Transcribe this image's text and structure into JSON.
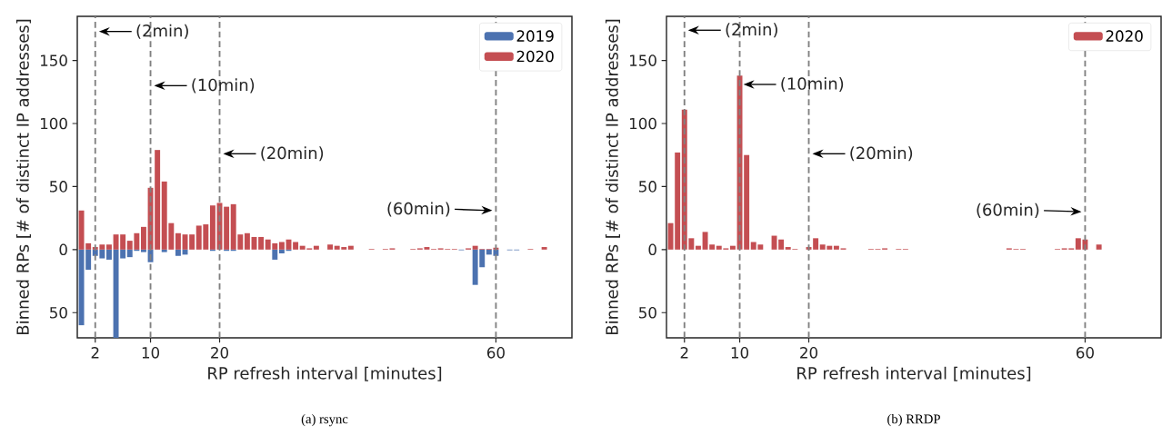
{
  "chart_data": [
    {
      "type": "bar",
      "xlabel": "RP refresh interval [minutes]",
      "ylabel": "Binned RPs [# of distinct IP addresses]",
      "x": [
        0,
        1,
        2,
        3,
        4,
        5,
        6,
        7,
        8,
        9,
        10,
        11,
        12,
        13,
        14,
        15,
        16,
        17,
        18,
        19,
        20,
        21,
        22,
        23,
        24,
        25,
        26,
        27,
        28,
        29,
        30,
        31,
        32,
        33,
        34,
        35,
        36,
        37,
        38,
        39,
        40,
        41,
        42,
        43,
        44,
        45,
        46,
        47,
        48,
        49,
        50,
        51,
        52,
        53,
        54,
        55,
        56,
        57,
        58,
        59,
        60,
        61,
        62,
        63,
        64,
        65,
        66,
        67
      ],
      "series": [
        {
          "name": "2019",
          "color": "#4c72b0",
          "values": [
            -60,
            -16,
            -5,
            -7,
            -8,
            -70,
            -7,
            -6,
            -1,
            -2,
            -10,
            null,
            -2,
            null,
            -5,
            -4,
            null,
            null,
            null,
            -1,
            null,
            -1,
            -1,
            null,
            null,
            null,
            null,
            null,
            -8,
            -3,
            -1,
            null,
            null,
            null,
            null,
            null,
            null,
            null,
            null,
            null,
            null,
            null,
            null,
            null,
            null,
            null,
            null,
            null,
            null,
            null,
            null,
            null,
            null,
            null,
            null,
            -0.5,
            null,
            -28,
            -14,
            -4,
            -5,
            null,
            -0.5,
            -0.5,
            null,
            null,
            null,
            null
          ]
        },
        {
          "name": "2020",
          "color": "#c44e52",
          "values": [
            31,
            5,
            2,
            4,
            4,
            12,
            12,
            7,
            13,
            18,
            49,
            79,
            54,
            21,
            13,
            12,
            12,
            19,
            20,
            35,
            37,
            34,
            36,
            12,
            13,
            10,
            10,
            8,
            5,
            6,
            8,
            6,
            3,
            1,
            3,
            null,
            4,
            3,
            2,
            3,
            null,
            null,
            0.5,
            null,
            0.5,
            1,
            null,
            null,
            0.5,
            1,
            2,
            0.5,
            1,
            0.5,
            0.5,
            null,
            1,
            3,
            0.5,
            0.5,
            1.5,
            null,
            null,
            null,
            null,
            0.5,
            null,
            2
          ]
        }
      ],
      "xlim": [
        -0.6,
        71
      ],
      "ylim": [
        -70,
        185
      ],
      "xticks": [
        2,
        10,
        20,
        60
      ],
      "yticks": [
        {
          "value": -50,
          "label": "50"
        },
        0,
        50,
        100,
        150
      ],
      "legend": "top right",
      "ref_lines": [
        {
          "axis": "x",
          "value": 2,
          "color": "#808080",
          "line_style": "dashed"
        },
        {
          "axis": "x",
          "value": 10,
          "color": "#808080",
          "line_style": "dashed"
        },
        {
          "axis": "x",
          "value": 20,
          "color": "#808080",
          "line_style": "dashed"
        },
        {
          "axis": "x",
          "value": 60,
          "color": "#808080",
          "line_style": "dashed"
        }
      ],
      "annotations": [
        {
          "text": "(2min)",
          "x": 2,
          "y": 173
        },
        {
          "text": "(10min)",
          "x": 10,
          "y": 130
        },
        {
          "text": "(20min)",
          "x": 20,
          "y": 76
        },
        {
          "text": "(60min)",
          "x": 60,
          "y": 31
        },
        "(a) rsync"
      ]
    },
    {
      "type": "bar",
      "xlabel": "RP refresh interval [minutes]",
      "ylabel": "Binned RPs [# of distinct IP addresses]",
      "x": [
        0,
        1,
        2,
        3,
        4,
        5,
        6,
        7,
        8,
        9,
        10,
        11,
        12,
        13,
        14,
        15,
        16,
        17,
        18,
        19,
        20,
        21,
        22,
        23,
        24,
        25,
        26,
        27,
        28,
        29,
        30,
        31,
        32,
        33,
        34,
        35,
        36,
        37,
        38,
        39,
        40,
        41,
        42,
        43,
        44,
        45,
        46,
        47,
        48,
        49,
        50,
        51,
        52,
        53,
        54,
        55,
        56,
        57,
        58,
        59,
        60,
        61,
        62
      ],
      "series": [
        {
          "name": "2020",
          "color": "#c44e52",
          "values": [
            21,
            77,
            111,
            9,
            3,
            14,
            4,
            3,
            1,
            3,
            138,
            75,
            6,
            4,
            null,
            11,
            8,
            2,
            0.5,
            null,
            2,
            9,
            4,
            3,
            3,
            1,
            null,
            null,
            null,
            0.5,
            0.5,
            1,
            null,
            0.5,
            0.5,
            null,
            null,
            null,
            null,
            null,
            null,
            null,
            null,
            null,
            null,
            null,
            null,
            null,
            null,
            1,
            0.5,
            0.5,
            null,
            null,
            null,
            null,
            0.5,
            1,
            1,
            9,
            8,
            null,
            4
          ]
        }
      ],
      "xlim": [
        -0.6,
        71
      ],
      "ylim": [
        -70,
        185
      ],
      "xticks": [
        2,
        10,
        20,
        60
      ],
      "yticks": [
        {
          "value": -50,
          "label": "50"
        },
        0,
        50,
        100,
        150
      ],
      "legend": "top right",
      "ref_lines": [
        {
          "axis": "x",
          "value": 2,
          "color": "#808080",
          "line_style": "dashed"
        },
        {
          "axis": "x",
          "value": 10,
          "color": "#808080",
          "line_style": "dashed"
        },
        {
          "axis": "x",
          "value": 20,
          "color": "#808080",
          "line_style": "dashed"
        },
        {
          "axis": "x",
          "value": 60,
          "color": "#808080",
          "line_style": "dashed"
        }
      ],
      "annotations": [
        {
          "text": "(2min)",
          "x": 2,
          "y": 174
        },
        {
          "text": "(10min)",
          "x": 10,
          "y": 131
        },
        {
          "text": "(20min)",
          "x": 20,
          "y": 76
        },
        {
          "text": "(60min)",
          "x": 60,
          "y": 30
        },
        "(b) RRDP"
      ]
    }
  ]
}
